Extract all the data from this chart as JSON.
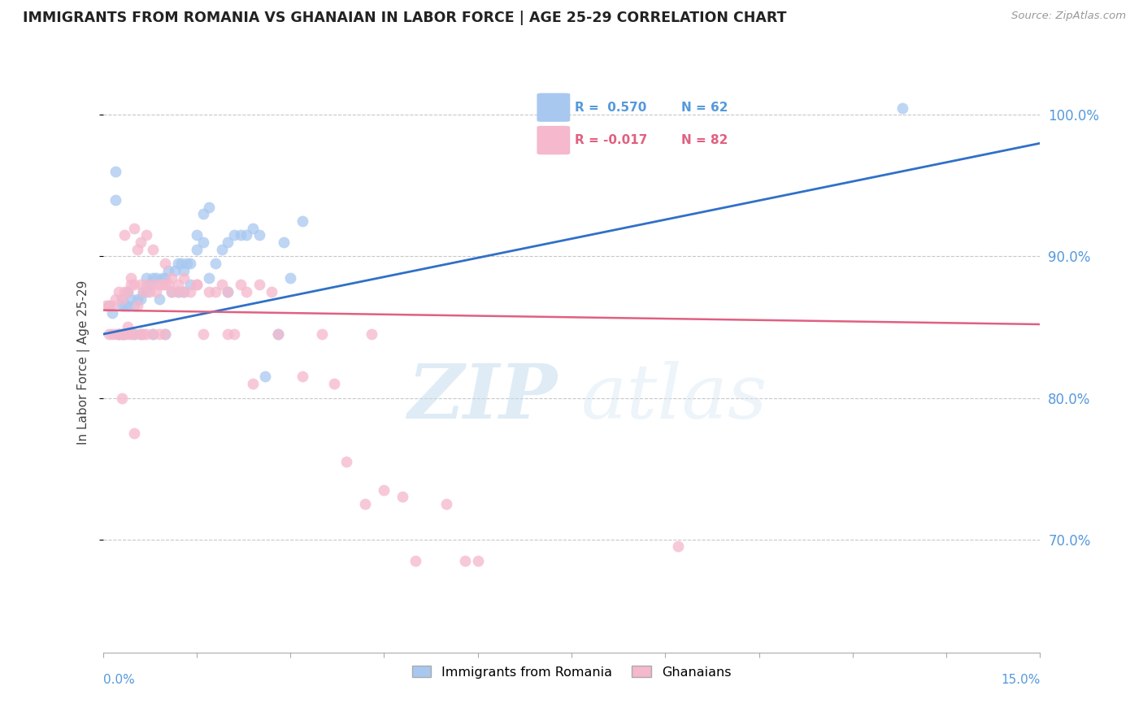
{
  "title": "IMMIGRANTS FROM ROMANIA VS GHANAIAN IN LABOR FORCE | AGE 25-29 CORRELATION CHART",
  "source": "Source: ZipAtlas.com",
  "ylabel": "In Labor Force | Age 25-29",
  "right_yticks": [
    70.0,
    80.0,
    90.0,
    100.0
  ],
  "x_min": 0.0,
  "x_max": 15.0,
  "y_min": 62.0,
  "y_max": 103.0,
  "R_blue": 0.57,
  "N_blue": 62,
  "R_pink": -0.017,
  "N_pink": 82,
  "color_blue": "#a8c8f0",
  "color_pink": "#f5b8cc",
  "color_blue_line": "#3070c8",
  "color_pink_line": "#e06080",
  "watermark_zip": "ZIP",
  "watermark_atlas": "atlas",
  "legend_label_blue": "Immigrants from Romania",
  "legend_label_pink": "Ghanaians",
  "blue_line_x0": 0.0,
  "blue_line_y0": 84.5,
  "blue_line_x1": 15.0,
  "blue_line_y1": 98.0,
  "pink_line_x0": 0.0,
  "pink_line_y0": 86.2,
  "pink_line_x1": 15.0,
  "pink_line_y1": 85.2,
  "blue_x": [
    0.1,
    0.15,
    0.2,
    0.2,
    0.25,
    0.25,
    0.3,
    0.3,
    0.3,
    0.35,
    0.35,
    0.4,
    0.4,
    0.45,
    0.5,
    0.5,
    0.55,
    0.6,
    0.6,
    0.65,
    0.7,
    0.7,
    0.75,
    0.8,
    0.8,
    0.85,
    0.9,
    0.95,
    1.0,
    1.0,
    1.05,
    1.1,
    1.15,
    1.2,
    1.25,
    1.3,
    1.35,
    1.4,
    1.5,
    1.6,
    1.7,
    1.8,
    1.9,
    2.0,
    2.0,
    2.1,
    2.2,
    2.3,
    2.4,
    2.5,
    2.6,
    2.8,
    3.0,
    3.2,
    1.5,
    1.6,
    1.7,
    1.4,
    1.3,
    1.2,
    12.8,
    2.9
  ],
  "blue_y": [
    86.5,
    86.0,
    96.0,
    94.0,
    84.5,
    84.5,
    86.5,
    87.0,
    84.5,
    86.5,
    84.5,
    87.5,
    86.5,
    87.0,
    84.5,
    86.5,
    87.0,
    84.5,
    87.0,
    87.5,
    88.5,
    87.5,
    88.0,
    84.5,
    88.5,
    88.5,
    87.0,
    88.5,
    84.5,
    88.5,
    89.0,
    87.5,
    89.0,
    89.5,
    89.5,
    87.5,
    89.5,
    88.0,
    90.5,
    91.0,
    88.5,
    89.5,
    90.5,
    91.0,
    87.5,
    91.5,
    91.5,
    91.5,
    92.0,
    91.5,
    81.5,
    84.5,
    88.5,
    92.5,
    91.5,
    93.0,
    93.5,
    89.5,
    89.0,
    87.5,
    100.5,
    91.0
  ],
  "pink_x": [
    0.05,
    0.1,
    0.1,
    0.15,
    0.15,
    0.2,
    0.2,
    0.25,
    0.25,
    0.3,
    0.3,
    0.35,
    0.35,
    0.4,
    0.4,
    0.45,
    0.45,
    0.5,
    0.5,
    0.55,
    0.6,
    0.6,
    0.65,
    0.65,
    0.7,
    0.7,
    0.75,
    0.8,
    0.8,
    0.85,
    0.9,
    0.9,
    0.95,
    1.0,
    1.0,
    1.05,
    1.1,
    1.2,
    1.2,
    1.3,
    1.4,
    1.5,
    1.6,
    1.7,
    1.8,
    1.9,
    2.0,
    2.1,
    2.2,
    2.3,
    2.5,
    2.7,
    0.5,
    0.6,
    0.7,
    0.8,
    1.0,
    1.1,
    1.3,
    1.5,
    0.3,
    0.4,
    0.5,
    2.0,
    2.4,
    2.8,
    3.2,
    3.5,
    3.7,
    4.3,
    4.8,
    5.5,
    0.35,
    0.55,
    0.45,
    4.5,
    5.0,
    9.2,
    4.2,
    6.0,
    3.9,
    5.8
  ],
  "pink_y": [
    86.5,
    86.5,
    84.5,
    86.5,
    84.5,
    87.0,
    84.5,
    87.5,
    84.5,
    87.0,
    84.5,
    87.5,
    84.5,
    87.5,
    85.0,
    88.0,
    84.5,
    88.0,
    84.5,
    86.5,
    88.0,
    84.5,
    87.5,
    84.5,
    88.0,
    84.5,
    87.5,
    88.0,
    84.5,
    87.5,
    88.0,
    84.5,
    88.0,
    88.0,
    84.5,
    88.0,
    87.5,
    88.0,
    87.5,
    87.5,
    87.5,
    88.0,
    84.5,
    87.5,
    87.5,
    88.0,
    87.5,
    84.5,
    88.0,
    87.5,
    88.0,
    87.5,
    92.0,
    91.0,
    91.5,
    90.5,
    89.5,
    88.5,
    88.5,
    88.0,
    80.0,
    84.5,
    77.5,
    84.5,
    81.0,
    84.5,
    81.5,
    84.5,
    81.0,
    84.5,
    73.0,
    72.5,
    91.5,
    90.5,
    88.5,
    73.5,
    68.5,
    69.5,
    72.5,
    68.5,
    75.5,
    68.5
  ]
}
